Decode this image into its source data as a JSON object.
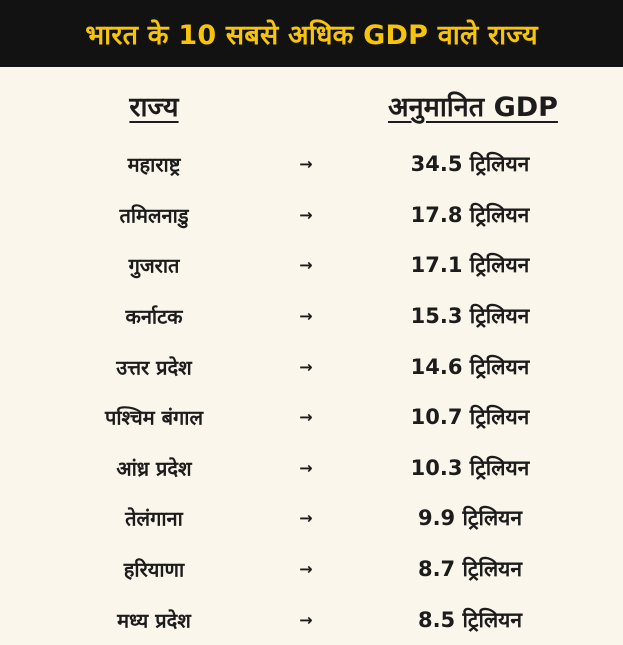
{
  "header": {
    "title": "भारत के 10 सबसे अधिक GDP वाले राज्य"
  },
  "columns": {
    "state": "राज्य",
    "gdp": "अनुमानित GDP"
  },
  "arrow_glyph": "→",
  "rows": [
    {
      "state": "महाराष्ट्र",
      "gdp": "34.5 ट्रिलियन"
    },
    {
      "state": "तमिलनाडु",
      "gdp": "17.8 ट्रिलियन"
    },
    {
      "state": "गुजरात",
      "gdp": "17.1 ट्रिलियन"
    },
    {
      "state": "कर्नाटक",
      "gdp": "15.3 ट्रिलियन"
    },
    {
      "state": "उत्तर प्रदेश",
      "gdp": "14.6 ट्रिलियन"
    },
    {
      "state": "पश्चिम बंगाल",
      "gdp": "10.7 ट्रिलियन"
    },
    {
      "state": "आंध्र प्रदेश",
      "gdp": "10.3 ट्रिलियन"
    },
    {
      "state": "तेलंगाना",
      "gdp": "9.9 ट्रिलियन"
    },
    {
      "state": "हरियाणा",
      "gdp": "8.7 ट्रिलियन"
    },
    {
      "state": "मध्य प्रदेश",
      "gdp": "8.5 ट्रिलियन"
    }
  ],
  "colors": {
    "header_bg": "#121212",
    "header_text": "#f6c40c",
    "page_bg": "#fbf6ec",
    "text": "#1c1c1c"
  }
}
